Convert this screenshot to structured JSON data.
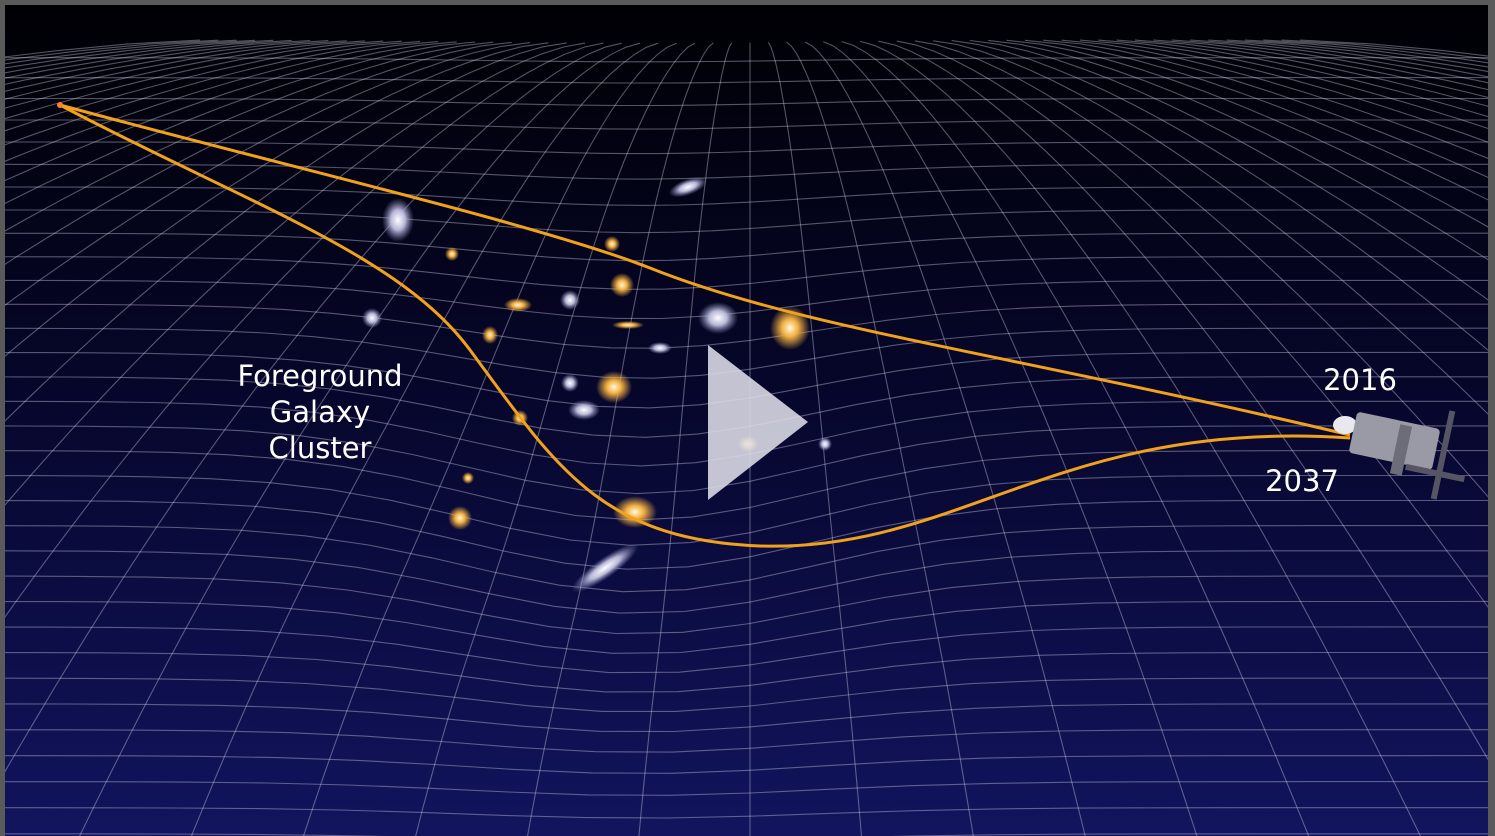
{
  "video": {
    "label_lines": [
      "Foreground",
      "Galaxy",
      "Cluster"
    ],
    "years": [
      "2016",
      "2037"
    ]
  }
}
